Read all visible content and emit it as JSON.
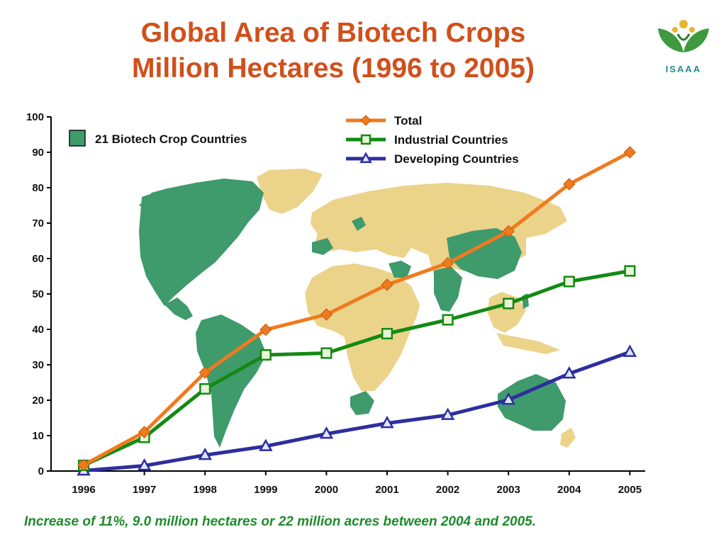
{
  "header": {
    "title_line1": "Global Area of Biotech Crops",
    "title_line2": "Million Hectares (1996 to 2005)",
    "logo_text": "ISAAA"
  },
  "footer": {
    "note": "Increase of 11%, 9.0 million hectares or 22 million acres between 2004 and 2005."
  },
  "map_legend": {
    "label": "21 Biotech Crop Countries",
    "color": "#3f9a6c"
  },
  "colors": {
    "land_other": "#ecd38a",
    "land_biotech": "#3f9a6c",
    "title": "#d0501c",
    "footer": "#1f8a2c"
  },
  "chart_data": {
    "type": "line",
    "title": "Global Area of Biotech Crops Million Hectares (1996 to 2005)",
    "xlabel": "",
    "ylabel": "",
    "x": [
      "1996",
      "1997",
      "1998",
      "1999",
      "2000",
      "2001",
      "2002",
      "2003",
      "2004",
      "2005"
    ],
    "ylim": [
      0,
      100
    ],
    "yticks": [
      0,
      10,
      20,
      30,
      40,
      50,
      60,
      70,
      80,
      90,
      100
    ],
    "grid": false,
    "legend_position": "top-center",
    "series": [
      {
        "name": "Total",
        "color": "#f07a1e",
        "marker": "diamond",
        "values": [
          1.7,
          11.0,
          27.8,
          39.9,
          44.2,
          52.6,
          58.7,
          67.7,
          81.0,
          90.0
        ]
      },
      {
        "name": "Industrial Countries",
        "color": "#138a13",
        "marker": "square",
        "values": [
          1.6,
          9.5,
          23.2,
          32.8,
          33.3,
          38.8,
          42.7,
          47.3,
          53.5,
          56.5
        ]
      },
      {
        "name": "Developing Countries",
        "color": "#2e2e9e",
        "marker": "triangle",
        "values": [
          0.1,
          1.5,
          4.5,
          7.0,
          10.5,
          13.5,
          15.8,
          20.1,
          27.5,
          33.6
        ]
      }
    ]
  }
}
